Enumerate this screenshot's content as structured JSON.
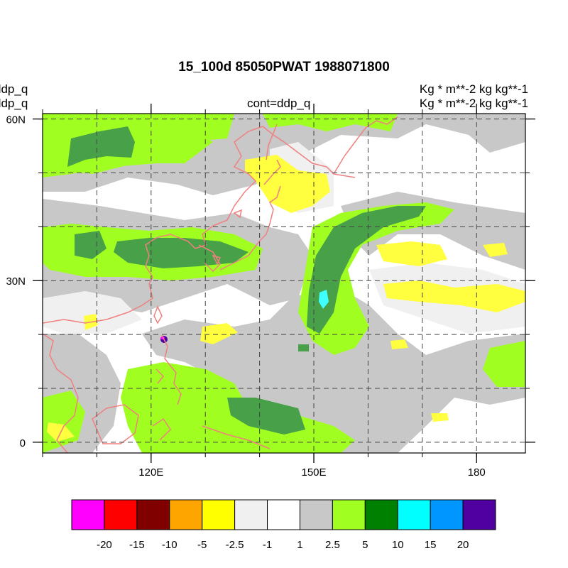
{
  "title": "15_100d 85050PWAT  1988071800",
  "left_labels": [
    "ddp_q",
    "ddp_q"
  ],
  "center_label": "cont=ddp_q",
  "right_labels": [
    "Kg  * m**-2 kg kg**-1",
    "Kg  * m**-2 kg kg**-1"
  ],
  "map": {
    "lon_range": [
      100,
      189
    ],
    "lat_range": [
      -2,
      61
    ],
    "lat_ticks": [
      {
        "value": 0,
        "label": "0"
      },
      {
        "value": 30,
        "label": "30N"
      },
      {
        "value": 60,
        "label": "60N"
      }
    ],
    "lon_ticks": [
      {
        "value": 120,
        "label": "120E"
      },
      {
        "value": 150,
        "label": "150E"
      },
      {
        "value": 180,
        "label": "180"
      }
    ],
    "grid_lons": [
      100,
      110,
      120,
      130,
      140,
      150,
      160,
      170,
      180
    ],
    "grid_lats": [
      0,
      10,
      20,
      30,
      40,
      50,
      60
    ],
    "coastline_color": "#f08080"
  },
  "colorbar": {
    "colors": [
      "#ff00ff",
      "#ff0000",
      "#800000",
      "#ffa500",
      "#ffff00",
      "#f0f0f0",
      "#ffffff",
      "#c8c8c8",
      "#a0ff20",
      "#008000",
      "#00ffff",
      "#0096ff",
      "#5000a0"
    ],
    "labels": [
      "-20",
      "-15",
      "-10",
      "-5",
      "-2.5",
      "-1",
      "1",
      "2.5",
      "5",
      "10",
      "15",
      "20"
    ]
  }
}
